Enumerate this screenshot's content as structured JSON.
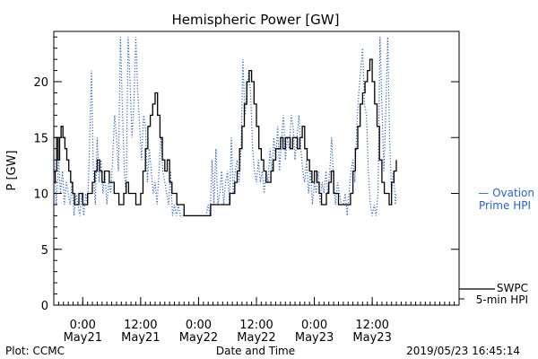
{
  "chart_data": {
    "type": "line",
    "title": "Hemispheric Power [GW]",
    "ylabel": "P [GW]",
    "xlabel": "Date and Time",
    "ylim": [
      0,
      24.5
    ],
    "xlim": [
      -6,
      78
    ],
    "x_unit": "hours since 2019-05-21 00:00 UT",
    "yticks": [
      0,
      5,
      10,
      15,
      20
    ],
    "y_minor_step": 1,
    "xticks": [
      {
        "x": 0,
        "time": "0:00",
        "date": "May21"
      },
      {
        "x": 12,
        "time": "12:00",
        "date": "May21"
      },
      {
        "x": 24,
        "time": "0:00",
        "date": "May22"
      },
      {
        "x": 36,
        "time": "12:00",
        "date": "May22"
      },
      {
        "x": 48,
        "time": "0:00",
        "date": "May23"
      },
      {
        "x": 60,
        "time": "12:00",
        "date": "May23"
      }
    ],
    "x_minor_step": 1,
    "grid": false,
    "legend": [
      {
        "series": "Ovation Prime HPI",
        "line1": "— Ovation",
        "line2": "Prime HPI",
        "color": "#2a62c9"
      },
      {
        "series": "SWPC 5-min HPI",
        "line1": "SWPC",
        "line2": "5-min HPI",
        "color": "#000000"
      }
    ],
    "series": [
      {
        "name": "SWPC 5-min HPI",
        "color": "#000000",
        "style": "step",
        "points": [
          [
            -6,
            11
          ],
          [
            -5.7,
            12
          ],
          [
            -5.4,
            15
          ],
          [
            -5.1,
            13
          ],
          [
            -4.8,
            15
          ],
          [
            -4.5,
            16
          ],
          [
            -4.1,
            15
          ],
          [
            -3.7,
            14
          ],
          [
            -3.3,
            13
          ],
          [
            -2.9,
            12
          ],
          [
            -2.5,
            11
          ],
          [
            -2.1,
            10
          ],
          [
            -1.7,
            9
          ],
          [
            -1.2,
            9
          ],
          [
            -0.8,
            10
          ],
          [
            -0.4,
            10
          ],
          [
            0,
            9
          ],
          [
            0.5,
            9
          ],
          [
            1,
            10
          ],
          [
            1.5,
            10
          ],
          [
            2,
            11
          ],
          [
            2.5,
            12
          ],
          [
            3,
            13
          ],
          [
            3.5,
            12
          ],
          [
            4,
            11
          ],
          [
            4.5,
            12
          ],
          [
            5,
            12
          ],
          [
            5.5,
            11
          ],
          [
            6,
            11
          ],
          [
            6.5,
            10
          ],
          [
            7,
            10
          ],
          [
            7.5,
            9
          ],
          [
            8,
            9
          ],
          [
            8.5,
            10
          ],
          [
            9,
            11
          ],
          [
            9.5,
            10
          ],
          [
            10,
            10
          ],
          [
            10.5,
            10
          ],
          [
            11,
            9
          ],
          [
            11.5,
            9
          ],
          [
            12,
            10
          ],
          [
            12.5,
            12
          ],
          [
            13,
            14
          ],
          [
            13.5,
            16
          ],
          [
            14,
            17
          ],
          [
            14.5,
            18
          ],
          [
            15,
            19
          ],
          [
            15.5,
            17
          ],
          [
            16,
            15
          ],
          [
            16.5,
            13
          ],
          [
            17,
            12
          ],
          [
            17.5,
            13
          ],
          [
            18,
            11
          ],
          [
            18.5,
            10
          ],
          [
            19,
            10
          ],
          [
            19.5,
            9
          ],
          [
            20,
            9
          ],
          [
            21,
            8
          ],
          [
            22,
            8
          ],
          [
            23,
            8
          ],
          [
            24,
            8
          ],
          [
            25,
            8
          ],
          [
            26,
            8
          ],
          [
            26.5,
            9
          ],
          [
            27,
            9
          ],
          [
            28,
            9
          ],
          [
            29,
            9
          ],
          [
            30,
            9
          ],
          [
            30.5,
            10
          ],
          [
            31,
            10
          ],
          [
            31.5,
            11
          ],
          [
            32,
            12
          ],
          [
            32.5,
            14
          ],
          [
            33,
            16
          ],
          [
            33.5,
            18
          ],
          [
            34,
            20
          ],
          [
            34.5,
            21
          ],
          [
            35,
            20
          ],
          [
            35.5,
            18
          ],
          [
            36,
            16
          ],
          [
            36.5,
            14
          ],
          [
            37,
            13
          ],
          [
            37.5,
            12
          ],
          [
            38,
            11
          ],
          [
            38.5,
            11
          ],
          [
            39,
            12
          ],
          [
            39.5,
            13
          ],
          [
            40,
            14
          ],
          [
            40.5,
            14
          ],
          [
            41,
            15
          ],
          [
            41.5,
            14
          ],
          [
            42,
            15
          ],
          [
            42.5,
            15
          ],
          [
            43,
            14
          ],
          [
            43.5,
            15
          ],
          [
            44,
            15
          ],
          [
            44.5,
            14
          ],
          [
            45,
            15
          ],
          [
            45.5,
            16
          ],
          [
            46,
            14
          ],
          [
            46.5,
            13
          ],
          [
            47,
            12
          ],
          [
            47.5,
            11
          ],
          [
            48,
            12
          ],
          [
            48.5,
            11
          ],
          [
            49,
            10
          ],
          [
            49.5,
            9
          ],
          [
            50,
            9
          ],
          [
            50.5,
            10
          ],
          [
            51,
            11
          ],
          [
            51.5,
            12
          ],
          [
            52,
            10
          ],
          [
            52.5,
            10
          ],
          [
            53,
            9
          ],
          [
            53.5,
            9
          ],
          [
            54,
            9
          ],
          [
            55,
            9
          ],
          [
            55.5,
            10
          ],
          [
            56,
            12
          ],
          [
            56.5,
            14
          ],
          [
            57,
            16
          ],
          [
            57.5,
            18
          ],
          [
            58,
            19
          ],
          [
            58.5,
            20
          ],
          [
            59,
            21
          ],
          [
            59.5,
            22
          ],
          [
            60,
            20
          ],
          [
            60.5,
            18
          ],
          [
            61,
            16
          ],
          [
            61.5,
            13
          ],
          [
            62,
            11
          ],
          [
            62.5,
            10
          ],
          [
            63,
            10
          ],
          [
            63.5,
            9
          ],
          [
            64,
            11
          ],
          [
            64.5,
            12
          ],
          [
            65,
            13
          ]
        ]
      },
      {
        "name": "Ovation Prime HPI",
        "color": "#2a62c9",
        "style": "dotted",
        "points": [
          [
            -6,
            14
          ],
          [
            -5.5,
            9
          ],
          [
            -5,
            13
          ],
          [
            -4.6,
            10
          ],
          [
            -4.2,
            12
          ],
          [
            -3.8,
            9
          ],
          [
            -3.4,
            11
          ],
          [
            -3,
            10
          ],
          [
            -2.6,
            9
          ],
          [
            -2.2,
            11
          ],
          [
            -1.8,
            8
          ],
          [
            -1.4,
            10
          ],
          [
            -1,
            9
          ],
          [
            -0.6,
            8
          ],
          [
            -0.2,
            10
          ],
          [
            0.2,
            8
          ],
          [
            0.6,
            10
          ],
          [
            1,
            9
          ],
          [
            1.4,
            14
          ],
          [
            1.8,
            21
          ],
          [
            2.2,
            12
          ],
          [
            2.6,
            9
          ],
          [
            3,
            15
          ],
          [
            3.4,
            11
          ],
          [
            3.8,
            13
          ],
          [
            4.2,
            10
          ],
          [
            4.6,
            12
          ],
          [
            5,
            9
          ],
          [
            5.4,
            11
          ],
          [
            5.8,
            10
          ],
          [
            6.2,
            13
          ],
          [
            6.6,
            17
          ],
          [
            7,
            15
          ],
          [
            7.4,
            12
          ],
          [
            7.8,
            24
          ],
          [
            8.2,
            18
          ],
          [
            8.6,
            12
          ],
          [
            9,
            10
          ],
          [
            9.4,
            24
          ],
          [
            9.8,
            20
          ],
          [
            10.2,
            15
          ],
          [
            10.6,
            18
          ],
          [
            11,
            24
          ],
          [
            11.4,
            19
          ],
          [
            11.8,
            16
          ],
          [
            12.2,
            13
          ],
          [
            12.6,
            17
          ],
          [
            13,
            16
          ],
          [
            13.4,
            11
          ],
          [
            13.8,
            14
          ],
          [
            14.2,
            12
          ],
          [
            14.6,
            10
          ],
          [
            15,
            11
          ],
          [
            15.4,
            9
          ],
          [
            15.8,
            12
          ],
          [
            16.2,
            15
          ],
          [
            16.6,
            12
          ],
          [
            17,
            11
          ],
          [
            17.4,
            10
          ],
          [
            17.8,
            9
          ],
          [
            18.2,
            12
          ],
          [
            18.6,
            8
          ],
          [
            19,
            9
          ],
          [
            19.4,
            8
          ],
          [
            19.8,
            9
          ],
          [
            20.2,
            8
          ],
          [
            21,
            8
          ],
          [
            22,
            8
          ],
          [
            23,
            8
          ],
          [
            24,
            8
          ],
          [
            25,
            8
          ],
          [
            25.6,
            8
          ],
          [
            26,
            9
          ],
          [
            26.4,
            8
          ],
          [
            26.8,
            13
          ],
          [
            27.2,
            9
          ],
          [
            27.6,
            14
          ],
          [
            28,
            9
          ],
          [
            28.4,
            10
          ],
          [
            28.8,
            12
          ],
          [
            29.2,
            9
          ],
          [
            29.6,
            11
          ],
          [
            30,
            12
          ],
          [
            30.4,
            9
          ],
          [
            30.8,
            15
          ],
          [
            31.2,
            10
          ],
          [
            31.6,
            12
          ],
          [
            32,
            13
          ],
          [
            32.4,
            11
          ],
          [
            32.8,
            14
          ],
          [
            33.2,
            22
          ],
          [
            33.6,
            17
          ],
          [
            34,
            19
          ],
          [
            34.4,
            21
          ],
          [
            34.8,
            19
          ],
          [
            35.2,
            14
          ],
          [
            35.6,
            12
          ],
          [
            36,
            11
          ],
          [
            36.4,
            13
          ],
          [
            36.8,
            11
          ],
          [
            37.2,
            12
          ],
          [
            37.6,
            10
          ],
          [
            38,
            12
          ],
          [
            38.4,
            11
          ],
          [
            38.8,
            14
          ],
          [
            39.2,
            12
          ],
          [
            39.6,
            15
          ],
          [
            40,
            13
          ],
          [
            40.4,
            16
          ],
          [
            40.8,
            12
          ],
          [
            41.2,
            15
          ],
          [
            41.6,
            17
          ],
          [
            42,
            13
          ],
          [
            42.4,
            15
          ],
          [
            42.8,
            14
          ],
          [
            43.2,
            17
          ],
          [
            43.6,
            16
          ],
          [
            44,
            13
          ],
          [
            44.4,
            15
          ],
          [
            44.8,
            17
          ],
          [
            45.2,
            14
          ],
          [
            45.6,
            12
          ],
          [
            46,
            11
          ],
          [
            46.4,
            13
          ],
          [
            46.8,
            10
          ],
          [
            47.2,
            12
          ],
          [
            47.6,
            9
          ],
          [
            48,
            11
          ],
          [
            48.4,
            10
          ],
          [
            48.8,
            12
          ],
          [
            49.2,
            9
          ],
          [
            49.6,
            11
          ],
          [
            50,
            10
          ],
          [
            50.4,
            12
          ],
          [
            50.8,
            10
          ],
          [
            51.2,
            12
          ],
          [
            51.6,
            15
          ],
          [
            52,
            11
          ],
          [
            52.4,
            9
          ],
          [
            52.8,
            11
          ],
          [
            53.2,
            10
          ],
          [
            53.6,
            9
          ],
          [
            54,
            9
          ],
          [
            54.4,
            10
          ],
          [
            54.8,
            8
          ],
          [
            55.2,
            10
          ],
          [
            55.6,
            12
          ],
          [
            56,
            13
          ],
          [
            56.4,
            11
          ],
          [
            56.8,
            16
          ],
          [
            57.2,
            19
          ],
          [
            57.6,
            21
          ],
          [
            58,
            23
          ],
          [
            58.4,
            18
          ],
          [
            58.8,
            17
          ],
          [
            59.2,
            12
          ],
          [
            59.6,
            9
          ],
          [
            60,
            8
          ],
          [
            60.4,
            9
          ],
          [
            60.8,
            8
          ],
          [
            61.2,
            10
          ],
          [
            61.6,
            24
          ],
          [
            62,
            18
          ],
          [
            62.4,
            12
          ],
          [
            62.8,
            17
          ],
          [
            63.2,
            24
          ],
          [
            63.6,
            15
          ],
          [
            64,
            10
          ],
          [
            64.4,
            12
          ],
          [
            64.8,
            9
          ],
          [
            65,
            10
          ]
        ]
      }
    ]
  },
  "footer": {
    "left": "Plot: CCMC",
    "center": "Date and Time",
    "right": "2019/05/23 16:45:14"
  }
}
